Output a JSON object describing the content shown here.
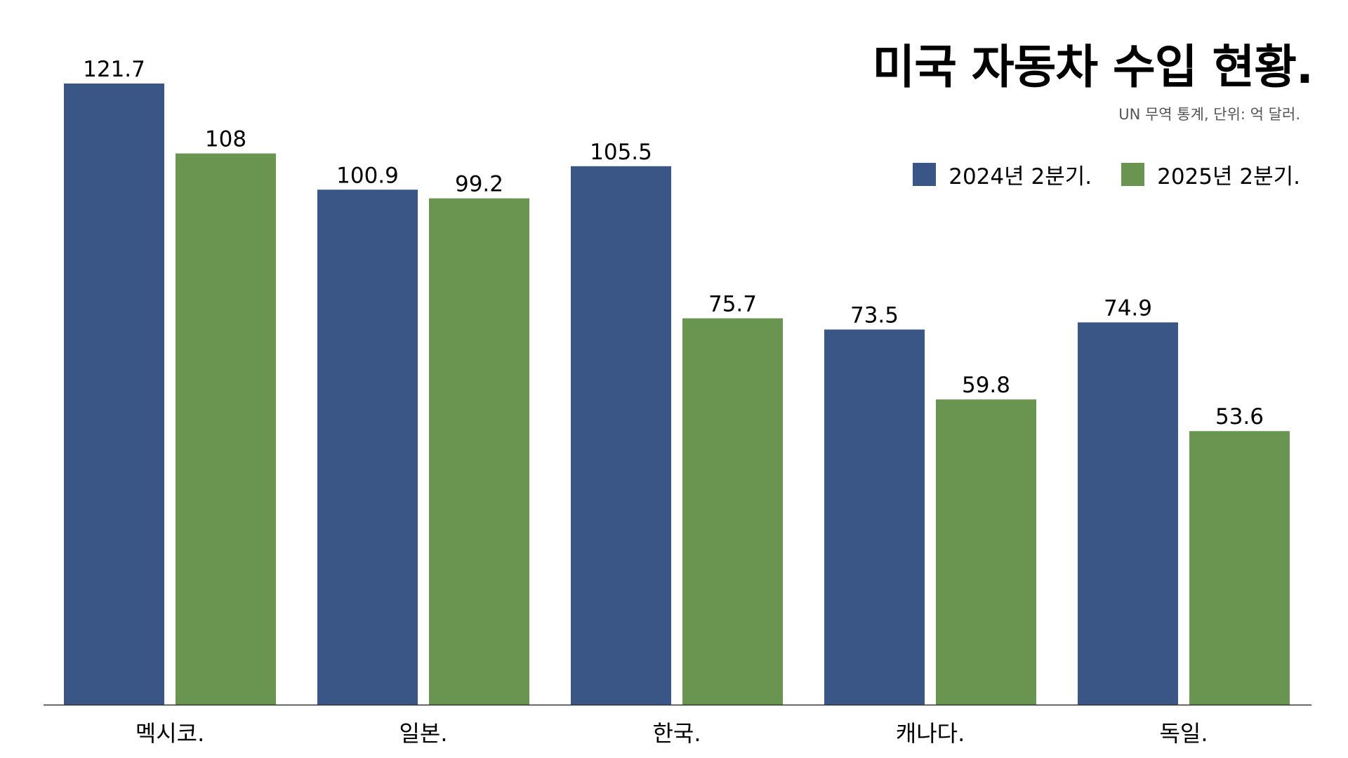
{
  "chart_data": {
    "type": "bar",
    "title": "미국 자동차 수입 현황.",
    "subtitle": "UN 무역 통계, 단위: 억 달러.",
    "categories": [
      "멕시코.",
      "일본.",
      "한국.",
      "캐나다.",
      "독일."
    ],
    "series": [
      {
        "name": "2024년 2분기.",
        "color": "#3a5686",
        "values": [
          121.7,
          100.9,
          105.5,
          73.5,
          74.9
        ],
        "value_labels": [
          "121.7",
          "100.9",
          "105.5",
          "73.5",
          "74.9"
        ]
      },
      {
        "name": "2025년 2분기.",
        "color": "#6a9550",
        "values": [
          108,
          99.2,
          75.7,
          59.8,
          53.6
        ],
        "value_labels": [
          "108",
          "99.2",
          "75.7",
          "59.8",
          "53.6"
        ]
      }
    ],
    "ylim": [
      0,
      121.7
    ],
    "xlabel": "",
    "ylabel": "",
    "grid": false,
    "legend_position": "top-right"
  }
}
